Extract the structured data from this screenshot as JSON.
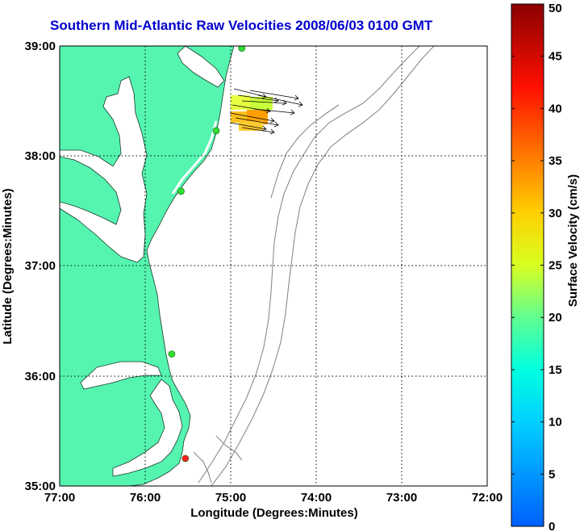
{
  "title": "Southern Mid-Atlantic Raw Velocities 2008/06/03 0100 GMT",
  "map": {
    "xlabel": "Longitude (Degrees:Minutes)",
    "ylabel": "Latitude (Degrees:Minutes)",
    "x_ticks": [
      "77:00",
      "76:00",
      "75:00",
      "74:00",
      "73:00",
      "72:00"
    ],
    "y_ticks": [
      "39:00",
      "38:00",
      "37:00",
      "36:00",
      "35:00"
    ],
    "lon_range": [
      -77,
      -72
    ],
    "lat_range": [
      35,
      39
    ],
    "land_color": "#55f5b0",
    "contour_color": "#8a8a8a",
    "grid": "dotted",
    "stations": [
      {
        "lon": -74.87,
        "lat": 38.98,
        "color": "#33dd33"
      },
      {
        "lon": -75.17,
        "lat": 38.23,
        "color": "#33dd33"
      },
      {
        "lon": -75.58,
        "lat": 37.68,
        "color": "#33dd33"
      },
      {
        "lon": -75.69,
        "lat": 36.2,
        "color": "#33dd33"
      },
      {
        "lon": -75.53,
        "lat": 35.25,
        "color": "#ff2020"
      }
    ]
  },
  "colorbar": {
    "label": "Surface Velocity (cm/s)",
    "min": 0,
    "max": 50,
    "ticks": [
      "0",
      "5",
      "10",
      "15",
      "20",
      "25",
      "30",
      "35",
      "40",
      "45",
      "50"
    ]
  }
}
